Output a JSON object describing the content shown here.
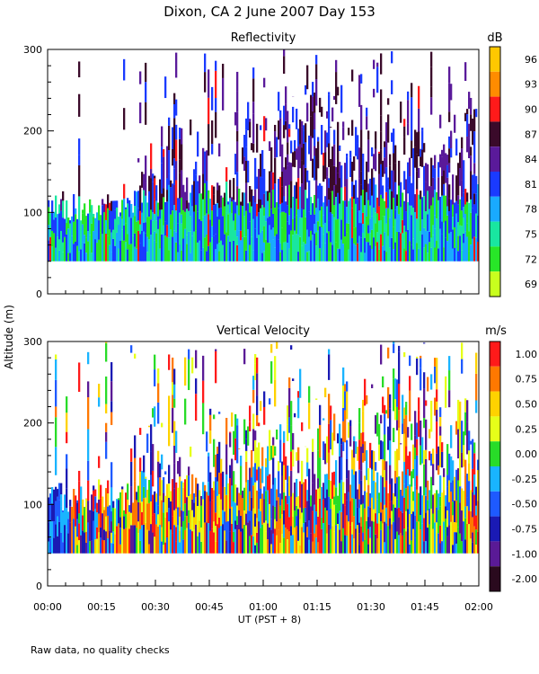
{
  "title": "Dixon, CA  2 June 2007  Day 153",
  "ylabel": "Altitude (m)",
  "xlabel": "UT  (PST + 8)",
  "footnote": "Raw data, no quality checks",
  "x_ticks": [
    "00:00",
    "00:15",
    "00:30",
    "00:45",
    "01:00",
    "01:15",
    "01:30",
    "01:45",
    "02:00"
  ],
  "y_ticks": [
    "0",
    "100",
    "200",
    "300"
  ],
  "chart_data": [
    {
      "type": "heatmap",
      "title": "Reflectivity",
      "xlabel": "UT  (PST + 8)",
      "ylabel": "Altitude (m)",
      "x_range_minutes": [
        0,
        120
      ],
      "ylim": [
        0,
        300
      ],
      "colorbar_unit": "dB",
      "colorbar_labels": [
        "96",
        "93",
        "90",
        "87",
        "84",
        "81",
        "78",
        "75",
        "72",
        "69"
      ],
      "colorbar_colors": [
        "#ffc800",
        "#ff8c00",
        "#ff1a1a",
        "#3a0a2a",
        "#5a1a9a",
        "#1a3aff",
        "#19aaff",
        "#19e6a0",
        "#28e628",
        "#c8ff1e"
      ],
      "data_range_m": [
        40,
        300
      ]
    },
    {
      "type": "heatmap",
      "title": "Vertical Velocity",
      "xlabel": "UT  (PST + 8)",
      "ylabel": "Altitude (m)",
      "x_range_minutes": [
        0,
        120
      ],
      "ylim": [
        0,
        300
      ],
      "colorbar_unit": "m/s",
      "colorbar_labels": [
        "1.00",
        "0.75",
        "0.50",
        "0.25",
        "0.00",
        "-0.25",
        "-0.50",
        "-0.75",
        "-1.00",
        "-2.00"
      ],
      "colorbar_colors": [
        "#ff1a1a",
        "#ff7800",
        "#ffd200",
        "#e6ff19",
        "#28dc28",
        "#19b4ff",
        "#1e5aff",
        "#1a1ab4",
        "#5a1a96",
        "#2a0a1e"
      ],
      "data_range_m": [
        40,
        300
      ]
    }
  ]
}
